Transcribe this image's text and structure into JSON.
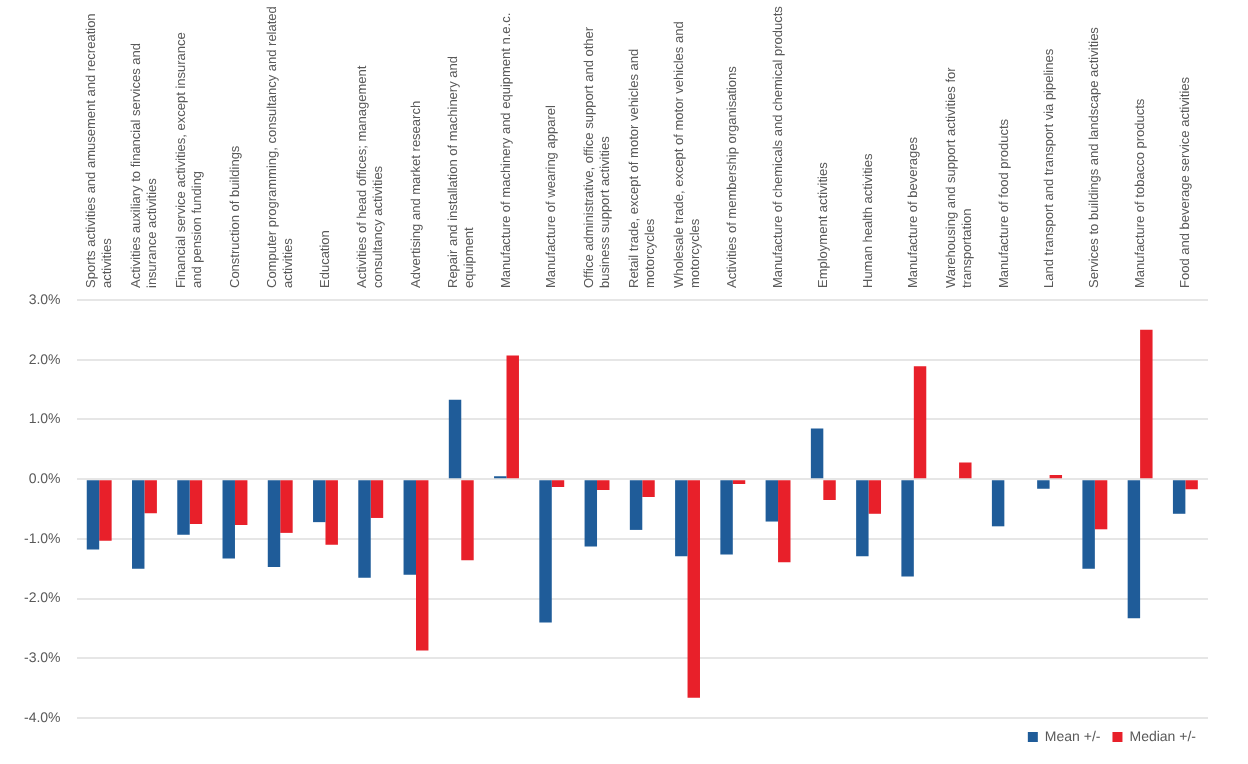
{
  "chart_data": {
    "type": "bar",
    "categories": [
      "Sports activities and amusement and recreation activities",
      "Activities auxiliary to financial services and insurance activities",
      "Financial service activities, except insurance and pension funding",
      "Construction of buildings",
      "Computer programming, consultancy and related activities",
      "Education",
      "Activities of head offices; management consultancy activities",
      "Advertising and market research",
      "Repair and installation of machinery and equipment",
      "Manufacture of machinery and equipment n.e.c.",
      "Manufacture of wearing apparel",
      "Office administrative, office support and other business support activities",
      "Retail trade, except of motor vehicles and motorcycles",
      "Wholesale trade, except of motor vehicles and motorcycles",
      "Activities of membership organisations",
      "Manufacture of chemicals and chemical products",
      "Employment activities",
      "Human health activities",
      "Manufacture of beverages",
      "Warehousing and support activities for transportation",
      "Manufacture of food products",
      "Land transport and transport via pipelines",
      "Services to buildings and landscape activities",
      "Manufacture of tobacco products",
      "Food and beverage service activities"
    ],
    "series": [
      {
        "name": "Mean +/-",
        "color": "#1f5c99",
        "values": [
          -1.18,
          -1.5,
          -0.93,
          -1.33,
          -1.47,
          -0.72,
          -1.65,
          -1.6,
          1.33,
          0.05,
          -2.4,
          -1.13,
          -0.85,
          -1.29,
          -1.26,
          -0.71,
          0.85,
          -1.29,
          -1.63,
          null,
          -0.79,
          -0.16,
          -1.5,
          -2.33,
          -0.58
        ]
      },
      {
        "name": "Median +/-",
        "color": "#e8202a",
        "values": [
          -1.03,
          -0.57,
          -0.75,
          -0.77,
          -0.9,
          -1.1,
          -0.65,
          -2.87,
          -1.36,
          2.07,
          -0.13,
          -0.18,
          -0.3,
          -3.66,
          -0.08,
          -1.39,
          -0.35,
          -0.58,
          1.89,
          0.28,
          null,
          0.07,
          -0.84,
          2.5,
          -0.17
        ]
      }
    ],
    "ylim": [
      -4,
      3
    ],
    "yticks": [
      {
        "value": -4,
        "label": "-4.0%"
      },
      {
        "value": -3,
        "label": "-3.0%"
      },
      {
        "value": -2,
        "label": "-2.0%"
      },
      {
        "value": -1,
        "label": "-1.0%"
      },
      {
        "value": 0,
        "label": "0.0%"
      },
      {
        "value": 1,
        "label": "1.0%"
      },
      {
        "value": 2,
        "label": "2.0%"
      },
      {
        "value": 3,
        "label": "3.0%"
      }
    ],
    "grid": "y",
    "legend": "bottom"
  }
}
